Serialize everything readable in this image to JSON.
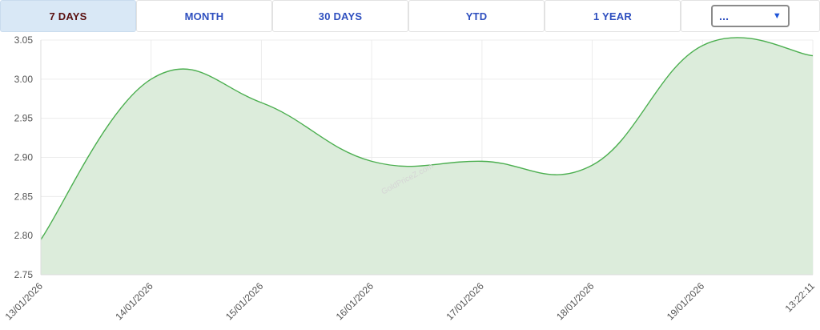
{
  "tabs": {
    "t7": "7 DAYS",
    "month": "MONTH",
    "t30": "30 DAYS",
    "ytd": "YTD",
    "year": "1 YEAR",
    "select_value": "..."
  },
  "chart_data": {
    "type": "area",
    "categories": [
      "13/01/2026",
      "14/01/2026",
      "15/01/2026",
      "16/01/2026",
      "17/01/2026",
      "18/01/2026",
      "19/01/2026",
      "13:22:11"
    ],
    "values": [
      2.795,
      3.0,
      2.97,
      2.895,
      2.895,
      2.89,
      3.043,
      3.03
    ],
    "ylim": [
      2.75,
      3.05
    ],
    "yticks": [
      "3.05",
      "3.00",
      "2.95",
      "2.90",
      "2.85",
      "2.80",
      "2.75"
    ],
    "watermark": "GoldPriceZ.com",
    "line_color": "#4caf50",
    "fill_color": "#dcecdb",
    "grid": true
  }
}
